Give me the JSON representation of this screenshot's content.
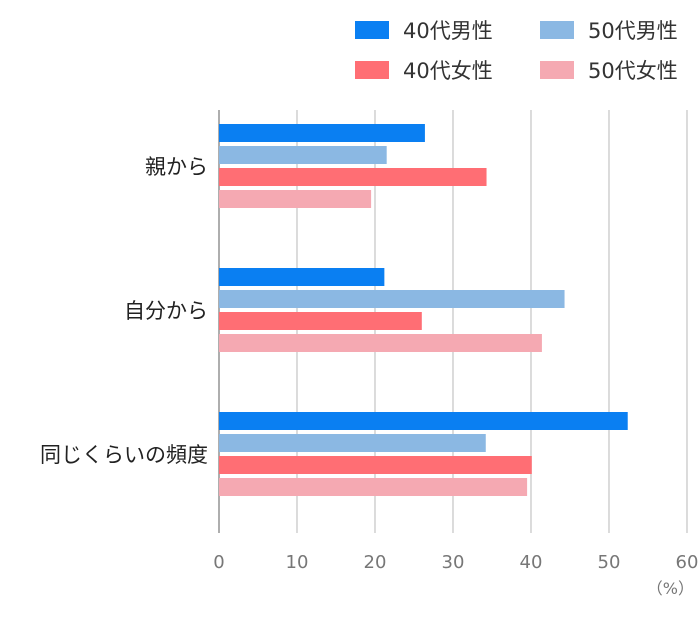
{
  "colors": {
    "40代男性": "#0a7ff2",
    "50代男性": "#8bb8e3",
    "40代女性": "#ff6e74",
    "50代女性": "#f5a9b2",
    "grid": "#cccccc",
    "axis": "#999999"
  },
  "legend": {
    "items": [
      {
        "label": "40代男性",
        "color": "#0a7ff2"
      },
      {
        "label": "50代男性",
        "color": "#8bb8e3"
      },
      {
        "label": "40代女性",
        "color": "#ff6e74"
      },
      {
        "label": "50代女性",
        "color": "#f5a9b2"
      }
    ]
  },
  "chart_data": {
    "type": "bar",
    "orientation": "horizontal",
    "categories": [
      "親から",
      "自分から",
      "同じくらいの頻度"
    ],
    "series": [
      {
        "name": "40代男性",
        "values": [
          26.4,
          21.2,
          52.4
        ]
      },
      {
        "name": "50代男性",
        "values": [
          21.5,
          44.3,
          34.2
        ]
      },
      {
        "name": "40代女性",
        "values": [
          34.3,
          26.0,
          40.1
        ]
      },
      {
        "name": "50代女性",
        "values": [
          19.5,
          41.4,
          39.5
        ]
      }
    ],
    "xlim": [
      0,
      60
    ],
    "xticks": [
      0,
      10,
      20,
      30,
      40,
      50,
      60
    ],
    "unit": "（%）",
    "grid": true,
    "legend_position": "top-right",
    "title": "",
    "xlabel": "",
    "ylabel": ""
  }
}
